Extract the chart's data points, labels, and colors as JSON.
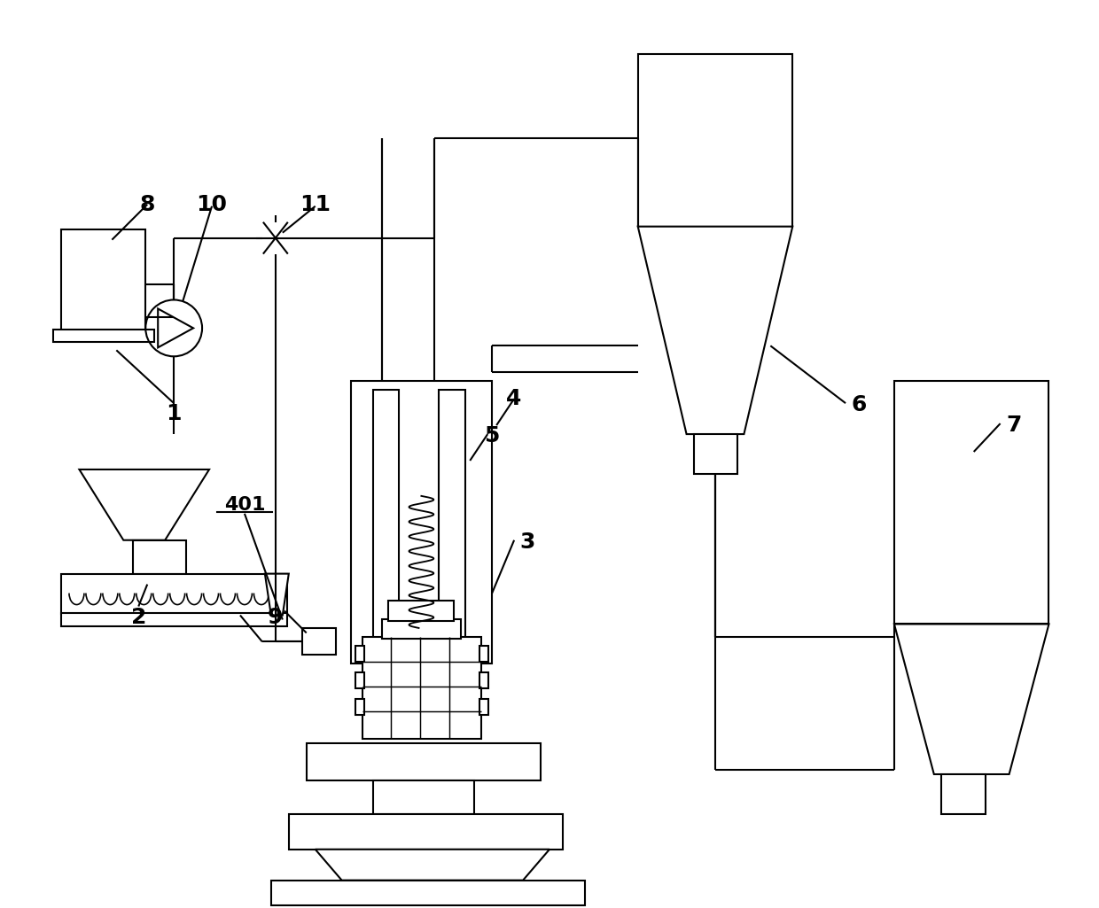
{
  "bg_color": "#ffffff",
  "line_color": "#000000",
  "lw": 1.5,
  "fig_width": 12.4,
  "fig_height": 10.25
}
